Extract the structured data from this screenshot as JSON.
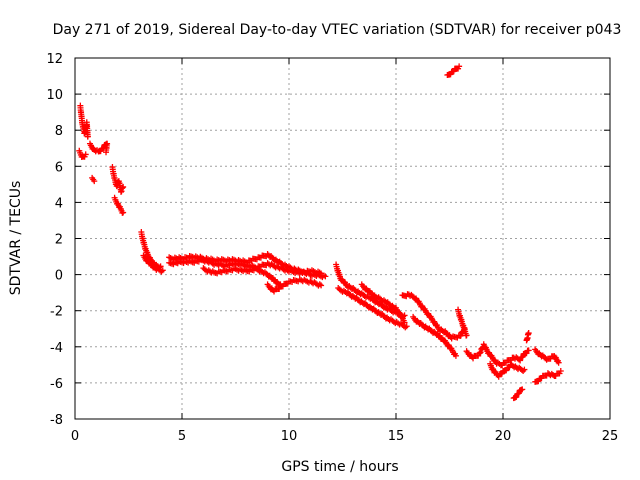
{
  "chart_data": {
    "type": "scatter",
    "title": "Day 271 of 2019, Sidereal Day-to-day VTEC variation (SDTVAR) for receiver p043",
    "xlabel": "GPS time / hours",
    "ylabel": "SDTVAR / TECUs",
    "xlim": [
      0,
      25
    ],
    "ylim": [
      -8,
      12
    ],
    "xticks": [
      0,
      5,
      10,
      15,
      20,
      25
    ],
    "yticks": [
      -8,
      -6,
      -4,
      -2,
      0,
      2,
      4,
      6,
      8,
      10,
      12
    ],
    "xtick_labels": [
      "0",
      "5",
      "10",
      "15",
      "20",
      "25"
    ],
    "ytick_labels": [
      "-8",
      "-6",
      "-4",
      "-2",
      "0",
      "2",
      "4",
      "6",
      "8",
      "10",
      "12"
    ],
    "grid": true,
    "marker": "+",
    "series": [
      {
        "name": "SDTVAR p043",
        "color": "#ff0000",
        "segments": [
          [
            [
              0.25,
              9.3
            ],
            [
              0.35,
              8.3
            ],
            [
              0.45,
              7.8
            ],
            [
              0.55,
              8.4
            ],
            [
              0.6,
              7.6
            ]
          ],
          [
            [
              0.2,
              6.8
            ],
            [
              0.35,
              6.5
            ],
            [
              0.5,
              6.6
            ]
          ],
          [
            [
              0.7,
              7.2
            ],
            [
              0.9,
              6.9
            ],
            [
              1.1,
              6.8
            ],
            [
              1.3,
              7.0
            ],
            [
              1.5,
              7.3
            ],
            [
              1.45,
              6.8
            ]
          ],
          [
            [
              0.8,
              5.3
            ],
            [
              0.9,
              5.2
            ]
          ],
          [
            [
              1.75,
              5.9
            ],
            [
              1.85,
              5.3
            ],
            [
              1.95,
              4.9
            ],
            [
              2.05,
              5.2
            ],
            [
              2.15,
              4.6
            ],
            [
              2.25,
              4.9
            ]
          ],
          [
            [
              1.85,
              4.2
            ],
            [
              2.0,
              3.9
            ],
            [
              2.1,
              3.7
            ],
            [
              2.25,
              3.4
            ]
          ],
          [
            [
              3.1,
              2.3
            ],
            [
              3.2,
              1.8
            ],
            [
              3.3,
              1.4
            ],
            [
              3.4,
              1.1
            ],
            [
              3.6,
              0.7
            ],
            [
              3.8,
              0.5
            ],
            [
              4.0,
              0.4
            ]
          ],
          [
            [
              3.2,
              1.0
            ],
            [
              3.5,
              0.6
            ],
            [
              3.8,
              0.3
            ],
            [
              4.1,
              0.2
            ]
          ],
          [
            [
              4.4,
              0.6
            ],
            [
              5.0,
              0.7
            ],
            [
              5.5,
              0.7
            ],
            [
              6.0,
              0.8
            ],
            [
              6.5,
              0.6
            ],
            [
              7.0,
              0.5
            ],
            [
              7.5,
              0.6
            ],
            [
              8.0,
              0.5
            ],
            [
              8.5,
              0.4
            ],
            [
              9.0,
              0.6
            ],
            [
              9.5,
              0.4
            ],
            [
              10.0,
              0.2
            ],
            [
              10.5,
              0.1
            ],
            [
              11.0,
              0.2
            ],
            [
              11.5,
              0.1
            ]
          ],
          [
            [
              4.4,
              0.9
            ],
            [
              5.0,
              0.9
            ],
            [
              5.5,
              1.0
            ],
            [
              6.0,
              0.9
            ],
            [
              6.5,
              0.8
            ],
            [
              7.0,
              0.8
            ],
            [
              7.5,
              0.8
            ],
            [
              8.0,
              0.7
            ],
            [
              8.5,
              0.9
            ],
            [
              9.0,
              1.1
            ],
            [
              9.5,
              0.7
            ],
            [
              10.0,
              0.4
            ],
            [
              10.5,
              0.2
            ],
            [
              11.0,
              0.0
            ],
            [
              11.7,
              -0.1
            ]
          ],
          [
            [
              6.0,
              0.3
            ],
            [
              6.5,
              0.1
            ],
            [
              7.0,
              0.2
            ],
            [
              7.5,
              0.3
            ],
            [
              8.0,
              0.2
            ],
            [
              8.5,
              0.3
            ],
            [
              9.0,
              0.0
            ],
            [
              9.3,
              -0.3
            ],
            [
              9.6,
              -0.6
            ]
          ],
          [
            [
              9.0,
              -0.6
            ],
            [
              9.3,
              -0.9
            ],
            [
              9.6,
              -0.7
            ],
            [
              10.0,
              -0.4
            ],
            [
              10.5,
              -0.3
            ],
            [
              11.0,
              -0.4
            ],
            [
              11.5,
              -0.6
            ]
          ],
          [
            [
              12.2,
              0.5
            ],
            [
              12.4,
              -0.2
            ],
            [
              12.7,
              -0.6
            ],
            [
              13.0,
              -0.8
            ],
            [
              13.4,
              -1.1
            ],
            [
              13.8,
              -1.3
            ],
            [
              14.2,
              -1.6
            ],
            [
              14.6,
              -1.9
            ],
            [
              15.0,
              -2.1
            ],
            [
              15.4,
              -2.3
            ]
          ],
          [
            [
              12.3,
              -0.8
            ],
            [
              12.7,
              -1.0
            ],
            [
              13.1,
              -1.3
            ],
            [
              13.5,
              -1.6
            ],
            [
              13.9,
              -1.9
            ],
            [
              14.3,
              -2.2
            ],
            [
              14.7,
              -2.5
            ],
            [
              15.1,
              -2.7
            ],
            [
              15.5,
              -2.9
            ]
          ],
          [
            [
              13.4,
              -0.6
            ],
            [
              14.0,
              -1.2
            ],
            [
              14.5,
              -1.5
            ],
            [
              15.0,
              -1.9
            ],
            [
              15.4,
              -2.6
            ]
          ],
          [
            [
              15.3,
              -1.2
            ],
            [
              15.6,
              -1.1
            ],
            [
              15.9,
              -1.3
            ],
            [
              16.1,
              -1.6
            ],
            [
              16.3,
              -1.9
            ],
            [
              16.5,
              -2.2
            ],
            [
              16.7,
              -2.5
            ],
            [
              17.0,
              -3.0
            ],
            [
              17.3,
              -3.2
            ],
            [
              17.6,
              -3.5
            ],
            [
              18.0,
              -3.4
            ],
            [
              18.2,
              -3.0
            ]
          ],
          [
            [
              15.8,
              -2.4
            ],
            [
              16.1,
              -2.7
            ],
            [
              16.5,
              -3.0
            ],
            [
              16.9,
              -3.3
            ],
            [
              17.2,
              -3.6
            ],
            [
              17.5,
              -4.0
            ],
            [
              17.8,
              -4.5
            ]
          ],
          [
            [
              17.9,
              -2.0
            ],
            [
              18.1,
              -2.7
            ],
            [
              18.3,
              -3.4
            ]
          ],
          [
            [
              18.3,
              -4.3
            ],
            [
              18.6,
              -4.6
            ],
            [
              18.9,
              -4.4
            ],
            [
              19.1,
              -3.9
            ],
            [
              19.3,
              -4.3
            ],
            [
              19.5,
              -4.6
            ],
            [
              19.7,
              -4.9
            ],
            [
              19.9,
              -5.0
            ],
            [
              20.2,
              -4.8
            ],
            [
              20.5,
              -4.6
            ],
            [
              20.8,
              -4.7
            ],
            [
              21.0,
              -4.4
            ],
            [
              21.2,
              -4.2
            ]
          ],
          [
            [
              19.4,
              -5.0
            ],
            [
              19.6,
              -5.4
            ],
            [
              19.8,
              -5.6
            ],
            [
              20.1,
              -5.3
            ],
            [
              20.4,
              -5.0
            ],
            [
              20.7,
              -5.2
            ],
            [
              21.0,
              -5.3
            ]
          ],
          [
            [
              20.5,
              -6.9
            ],
            [
              20.7,
              -6.6
            ],
            [
              20.9,
              -6.3
            ]
          ],
          [
            [
              21.1,
              -3.7
            ],
            [
              21.2,
              -3.2
            ]
          ],
          [
            [
              21.5,
              -4.2
            ],
            [
              21.8,
              -4.5
            ],
            [
              22.1,
              -4.7
            ],
            [
              22.4,
              -4.5
            ],
            [
              22.6,
              -4.9
            ]
          ],
          [
            [
              21.5,
              -6.0
            ],
            [
              21.8,
              -5.7
            ],
            [
              22.1,
              -5.5
            ],
            [
              22.4,
              -5.6
            ],
            [
              22.7,
              -5.4
            ]
          ],
          [
            [
              17.4,
              11.0
            ],
            [
              17.6,
              11.2
            ],
            [
              17.8,
              11.4
            ],
            [
              17.95,
              11.5
            ]
          ]
        ]
      }
    ]
  }
}
